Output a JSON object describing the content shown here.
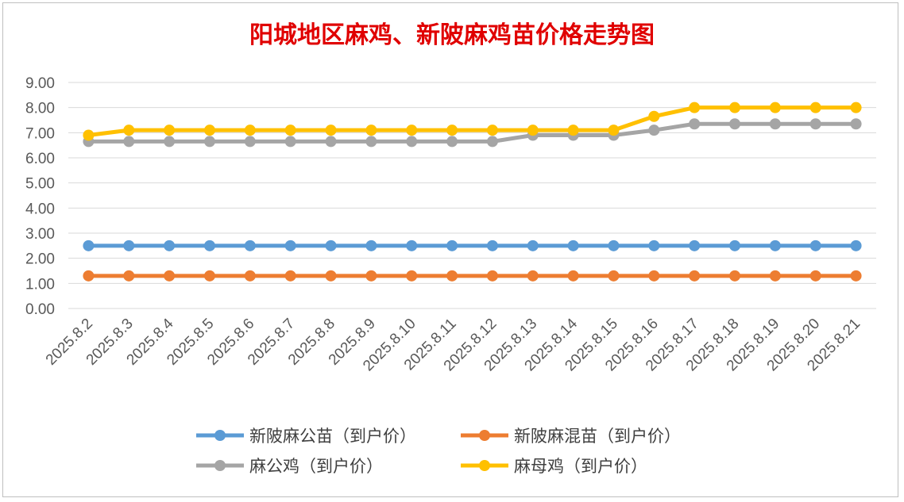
{
  "chart_data": {
    "type": "line",
    "title": "阳城地区麻鸡、新陂麻鸡苗价格走势图",
    "xlabel": "",
    "ylabel": "",
    "ylim": [
      0,
      9
    ],
    "yticks": [
      "0.00",
      "1.00",
      "2.00",
      "3.00",
      "4.00",
      "5.00",
      "6.00",
      "7.00",
      "8.00",
      "9.00"
    ],
    "grid": true,
    "legend_position": "bottom",
    "categories": [
      "2025.8.2",
      "2025.8.3",
      "2025.8.4",
      "2025.8.5",
      "2025.8.6",
      "2025.8.7",
      "2025.8.8",
      "2025.8.9",
      "2025.8.10",
      "2025.8.11",
      "2025.8.12",
      "2025.8.13",
      "2025.8.14",
      "2025.8.15",
      "2025.8.16",
      "2025.8.17",
      "2025.8.18",
      "2025.8.19",
      "2025.8.20",
      "2025.8.21"
    ],
    "series": [
      {
        "name": "新陂麻公苗（到户价）",
        "color": "#5b9bd5",
        "values": [
          2.5,
          2.5,
          2.5,
          2.5,
          2.5,
          2.5,
          2.5,
          2.5,
          2.5,
          2.5,
          2.5,
          2.5,
          2.5,
          2.5,
          2.5,
          2.5,
          2.5,
          2.5,
          2.5,
          2.5
        ]
      },
      {
        "name": "新陂麻混苗（到户价）",
        "color": "#ed7d31",
        "values": [
          1.3,
          1.3,
          1.3,
          1.3,
          1.3,
          1.3,
          1.3,
          1.3,
          1.3,
          1.3,
          1.3,
          1.3,
          1.3,
          1.3,
          1.3,
          1.3,
          1.3,
          1.3,
          1.3,
          1.3
        ]
      },
      {
        "name": "麻公鸡（到户价）",
        "color": "#a5a5a5",
        "values": [
          6.65,
          6.65,
          6.65,
          6.65,
          6.65,
          6.65,
          6.65,
          6.65,
          6.65,
          6.65,
          6.65,
          6.9,
          6.9,
          6.9,
          7.1,
          7.35,
          7.35,
          7.35,
          7.35,
          7.35
        ]
      },
      {
        "name": "麻母鸡（到户价）",
        "color": "#ffc000",
        "values": [
          6.9,
          7.1,
          7.1,
          7.1,
          7.1,
          7.1,
          7.1,
          7.1,
          7.1,
          7.1,
          7.1,
          7.1,
          7.1,
          7.1,
          7.65,
          8.0,
          8.0,
          8.0,
          8.0,
          8.0
        ]
      }
    ]
  }
}
